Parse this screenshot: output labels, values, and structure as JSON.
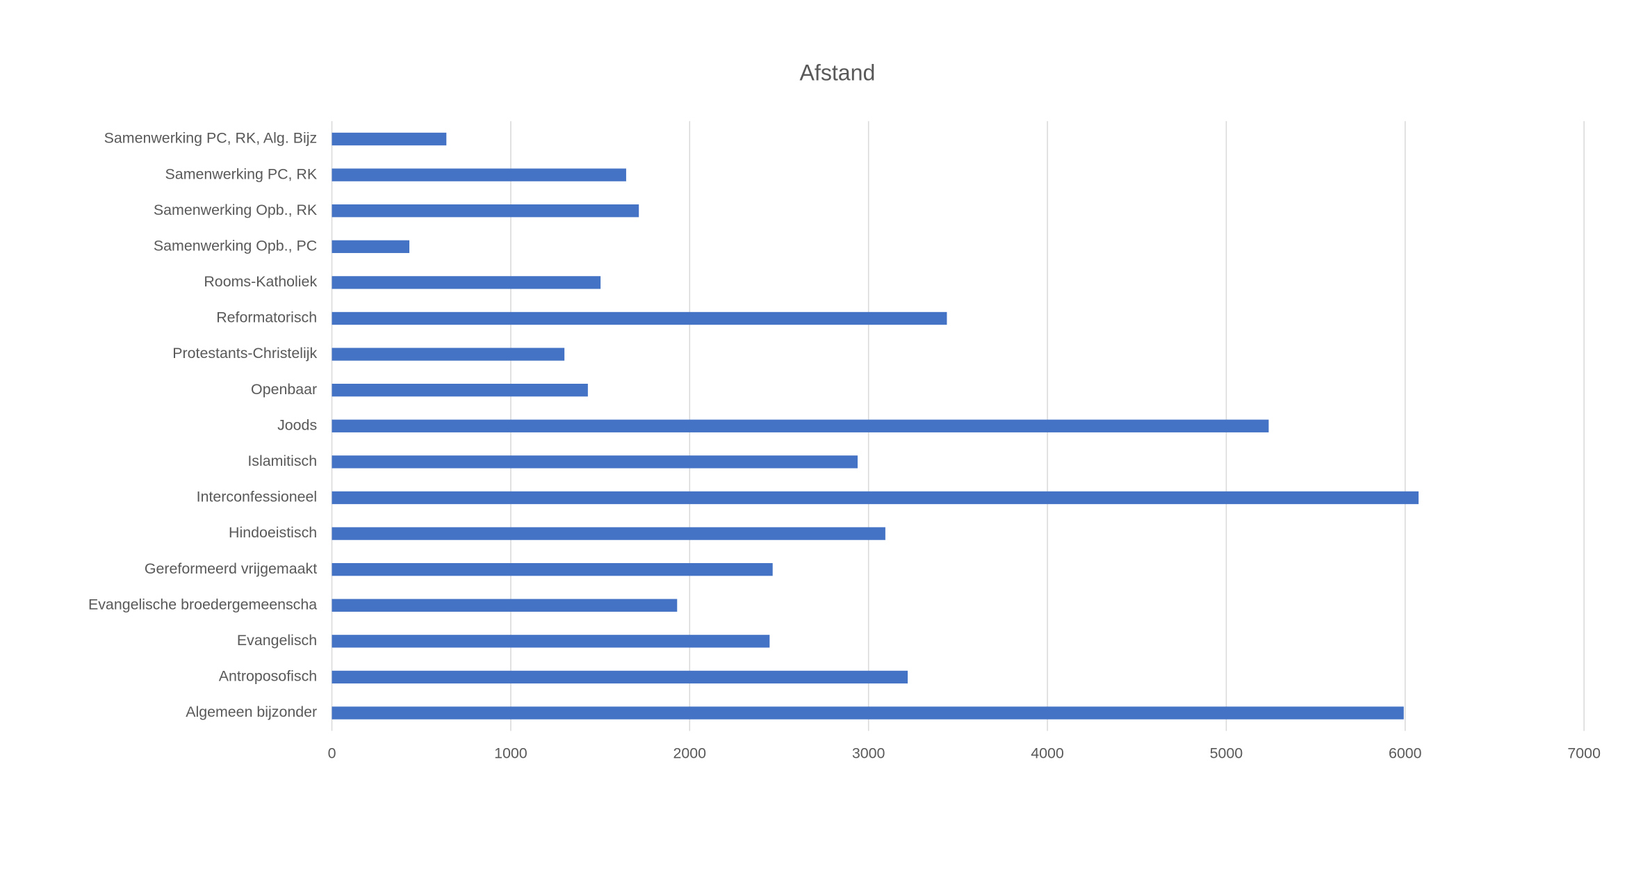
{
  "chart_data": {
    "type": "hbar",
    "title": "Afstand",
    "categories": [
      "Samenwerking PC, RK, Alg. Bijz",
      "Samenwerking PC, RK",
      "Samenwerking Opb., RK",
      "Samenwerking Opb., PC",
      "Rooms-Katholiek",
      "Reformatorisch",
      "Protestants-Christelijk",
      "Openbaar",
      "Joods",
      "Islamitisch",
      "Interconfessioneel",
      "Hindoeistisch",
      "Gereformeerd vrijgemaakt",
      "Evangelische broedergemeenscha",
      "Evangelisch",
      "Antroposofisch",
      "Algemeen bijzonder"
    ],
    "values": [
      640,
      1645,
      1716,
      433,
      1502,
      3438,
      1300,
      1431,
      5237,
      2939,
      6075,
      3094,
      2464,
      1930,
      2447,
      3219,
      5992
    ],
    "color": "#4472c4",
    "xlim": [
      0,
      7000
    ],
    "xticks": [
      0,
      1000,
      2000,
      3000,
      4000,
      5000,
      6000,
      7000
    ],
    "grid": true
  }
}
